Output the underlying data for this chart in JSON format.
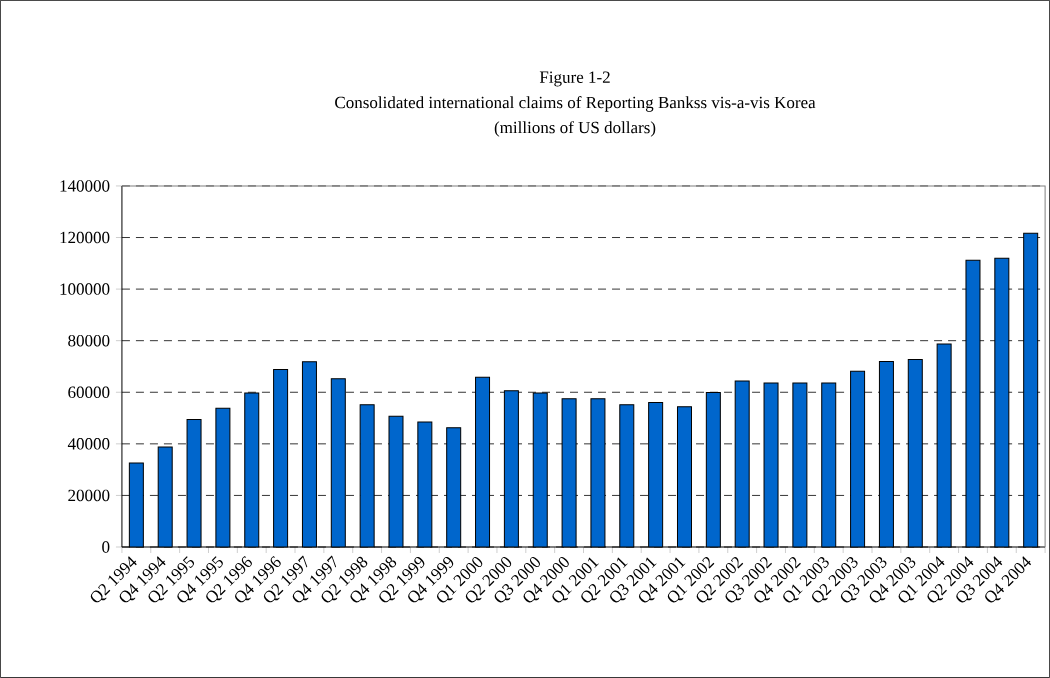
{
  "chart_data": {
    "type": "bar",
    "title": "Figure 1-2",
    "subtitle": "Consolidated international claims of Reporting Bankss vis-a-vis Korea",
    "annotations": [
      "(millions of US dollars)"
    ],
    "categories": [
      "Q2 1994",
      "Q4 1994",
      "Q2 1995",
      "Q4 1995",
      "Q2 1996",
      "Q4 1996",
      "Q2 1997",
      "Q4 1997",
      "Q2 1998",
      "Q4 1998",
      "Q2 1999",
      "Q4 1999",
      "Q1 2000",
      "Q2 2000",
      "Q3 2000",
      "Q4 2000",
      "Q1 2001",
      "Q2 2001",
      "Q3 2001",
      "Q4 2001",
      "Q1 2002",
      "Q2 2002",
      "Q3 2002",
      "Q4 2002",
      "Q1 2003",
      "Q2 2003",
      "Q3 2003",
      "Q4 2003",
      "Q1 2004",
      "Q2 2004",
      "Q3 2004",
      "Q4 2004"
    ],
    "values": [
      32600,
      38800,
      49400,
      53800,
      59700,
      68800,
      71800,
      65200,
      55200,
      50700,
      48500,
      46200,
      65800,
      60600,
      59700,
      57500,
      57500,
      55200,
      56000,
      54400,
      59900,
      64400,
      63600,
      63600,
      63600,
      68100,
      71900,
      72700,
      78700,
      111200,
      112000,
      121700
    ],
    "color": "#0066cc",
    "ylim": [
      0,
      140000
    ],
    "yticks": [
      0,
      20000,
      40000,
      60000,
      80000,
      100000,
      120000,
      140000
    ],
    "grid": "y"
  }
}
